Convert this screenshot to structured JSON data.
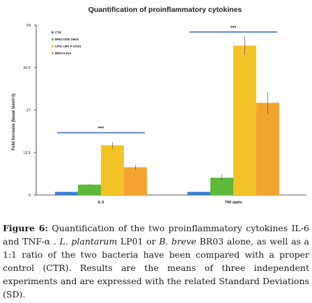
{
  "chart_data": {
    "type": "bar",
    "title": "Quantification of proinflammatory cytokines",
    "ylabel": "Fold increase (basal level=1)",
    "xlabel": "",
    "ylim": [
      0,
      54
    ],
    "yticks": [
      "0",
      "13.5",
      "27",
      "40.5",
      "54"
    ],
    "categories": [
      "IL-6",
      "TNF-alpha"
    ],
    "series": [
      {
        "name": "CTR",
        "values": [
          1,
          1
        ],
        "errors": [
          0.1,
          0.1
        ]
      },
      {
        "name": "BR03 DSM 16604",
        "values": [
          3.3,
          5.5
        ],
        "errors": [
          0.2,
          1.0
        ]
      },
      {
        "name": "LP01 LMG P-21021",
        "values": [
          15.8,
          47.5
        ],
        "errors": [
          1.0,
          3.0
        ]
      },
      {
        "name": "BR03+LP01",
        "values": [
          8.8,
          29.3
        ],
        "errors": [
          0.8,
          3.5
        ]
      }
    ],
    "colors": [
      "#3b7dd8",
      "#5fb83a",
      "#f3c428",
      "#f3a32f"
    ],
    "significance": [
      {
        "category": "IL-6",
        "label": "***",
        "y": 19.8
      },
      {
        "category": "TNF-alpha",
        "label": "***",
        "y": 51.8
      }
    ],
    "legend_position": "top-left",
    "grid": false
  },
  "caption": {
    "label": "Figure 6:",
    "part1": " Quantification of the two proinflammatory cytokines IL-6 and TNF-α . ",
    "species1": "L. plantarum",
    "part2": " LP01 or ",
    "species2": "B. breve",
    "part3": " BR03 alone, as well as a 1:1 ratio of the two bacteria have been compared with a proper control (CTR). Results are the means of three independent experiments and are expressed with the related Standard Deviations (SD)."
  }
}
